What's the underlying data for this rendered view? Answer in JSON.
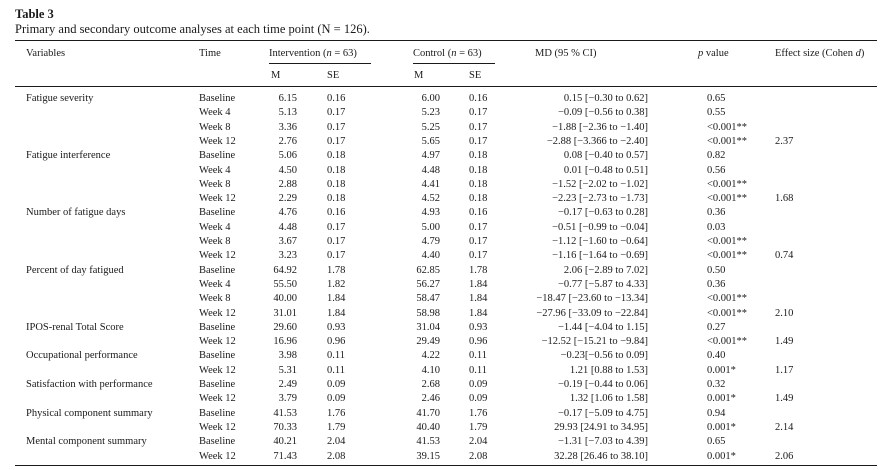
{
  "title": "Table 3",
  "caption": "Primary and secondary outcome analyses at each time point (N = 126).",
  "headers": {
    "variables": "Variables",
    "time": "Time",
    "intervention_label": "Intervention (",
    "intervention_n": "n",
    "intervention_rest": " = 63)",
    "control_label": "Control (",
    "control_n": "n",
    "control_rest": " = 63)",
    "md": "MD (95 % CI)",
    "p_italic": "p",
    "p_rest": " value",
    "effect_label": "Effect size (Cohen ",
    "effect_d": "d",
    "effect_close": ")",
    "m": "M",
    "se": "SE",
    "m2": "M",
    "se2": "SE"
  },
  "rows": [
    {
      "variable": "Fatigue severity",
      "time": "Baseline",
      "im": "6.15",
      "ise": "0.16",
      "cm": "6.00",
      "cse": "0.16",
      "md": "0.15 [−0.30 to 0.62]",
      "p": "0.65",
      "es": ""
    },
    {
      "variable": "",
      "time": "Week 4",
      "im": "5.13",
      "ise": "0.17",
      "cm": "5.23",
      "cse": "0.17",
      "md": "−0.09 [−0.56 to 0.38]",
      "p": "0.55",
      "es": ""
    },
    {
      "variable": "",
      "time": "Week 8",
      "im": "3.36",
      "ise": "0.17",
      "cm": "5.25",
      "cse": "0.17",
      "md": "−1.88 [−2.36 to −1.40]",
      "p": "<0.001**",
      "es": ""
    },
    {
      "variable": "",
      "time": "Week 12",
      "im": "2.76",
      "ise": "0.17",
      "cm": "5.65",
      "cse": "0.17",
      "md": "−2.88 [−3.366 to −2.40]",
      "p": "<0.001**",
      "es": "2.37"
    },
    {
      "variable": "Fatigue interference",
      "time": "Baseline",
      "im": "5.06",
      "ise": "0.18",
      "cm": "4.97",
      "cse": "0.18",
      "md": "0.08 [−0.40 to 0.57]",
      "p": "0.82",
      "es": ""
    },
    {
      "variable": "",
      "time": "Week 4",
      "im": "4.50",
      "ise": "0.18",
      "cm": "4.48",
      "cse": "0.18",
      "md": "0.01 [−0.48 to 0.51]",
      "p": "0.56",
      "es": ""
    },
    {
      "variable": "",
      "time": "Week 8",
      "im": "2.88",
      "ise": "0.18",
      "cm": "4.41",
      "cse": "0.18",
      "md": "−1.52 [−2.02 to −1.02]",
      "p": "<0.001**",
      "es": ""
    },
    {
      "variable": "",
      "time": "Week 12",
      "im": "2.29",
      "ise": "0.18",
      "cm": "4.52",
      "cse": "0.18",
      "md": "−2.23 [−2.73 to −1.73]",
      "p": "<0.001**",
      "es": "1.68"
    },
    {
      "variable": "Number of fatigue days",
      "time": "Baseline",
      "im": "4.76",
      "ise": "0.16",
      "cm": "4.93",
      "cse": "0.16",
      "md": "−0.17 [−0.63 to 0.28]",
      "p": "0.36",
      "es": ""
    },
    {
      "variable": "",
      "time": "Week 4",
      "im": "4.48",
      "ise": "0.17",
      "cm": "5.00",
      "cse": "0.17",
      "md": "−0.51 [−0.99 to −0.04]",
      "p": "0.03",
      "es": ""
    },
    {
      "variable": "",
      "time": "Week 8",
      "im": "3.67",
      "ise": "0.17",
      "cm": "4.79",
      "cse": "0.17",
      "md": "−1.12 [−1.60 to −0.64]",
      "p": "<0.001**",
      "es": ""
    },
    {
      "variable": "",
      "time": "Week 12",
      "im": "3.23",
      "ise": "0.17",
      "cm": "4.40",
      "cse": "0.17",
      "md": "−1.16 [−1.64 to −0.69]",
      "p": "<0.001**",
      "es": "0.74"
    },
    {
      "variable": "Percent of day fatigued",
      "time": "Baseline",
      "im": "64.92",
      "ise": "1.78",
      "cm": "62.85",
      "cse": "1.78",
      "md": "2.06 [−2.89 to 7.02]",
      "p": "0.50",
      "es": ""
    },
    {
      "variable": "",
      "time": "Week 4",
      "im": "55.50",
      "ise": "1.82",
      "cm": "56.27",
      "cse": "1.84",
      "md": "−0.77 [−5.87 to 4.33]",
      "p": "0.36",
      "es": ""
    },
    {
      "variable": "",
      "time": "Week 8",
      "im": "40.00",
      "ise": "1.84",
      "cm": "58.47",
      "cse": "1.84",
      "md": "−18.47 [−23.60 to −13.34]",
      "p": "<0.001**",
      "es": ""
    },
    {
      "variable": "",
      "time": "Week 12",
      "im": "31.01",
      "ise": "1.84",
      "cm": "58.98",
      "cse": "1.84",
      "md": "−27.96 [−33.09 to −22.84]",
      "p": "<0.001**",
      "es": "2.10"
    },
    {
      "variable": "IPOS-renal Total Score",
      "time": "Baseline",
      "im": "29.60",
      "ise": "0.93",
      "cm": "31.04",
      "cse": "0.93",
      "md": "−1.44 [−4.04 to 1.15]",
      "p": "0.27",
      "es": ""
    },
    {
      "variable": "",
      "time": "Week 12",
      "im": "16.96",
      "ise": "0.96",
      "cm": "29.49",
      "cse": "0.96",
      "md": "−12.52 [−15.21 to −9.84]",
      "p": "<0.001**",
      "es": "1.49"
    },
    {
      "variable": "Occupational performance",
      "time": "Baseline",
      "im": "3.98",
      "ise": "0.11",
      "cm": "4.22",
      "cse": "0.11",
      "md": "−0.23[−0.56 to 0.09]",
      "p": "0.40",
      "es": ""
    },
    {
      "variable": "",
      "time": "Week 12",
      "im": "5.31",
      "ise": "0.11",
      "cm": "4.10",
      "cse": "0.11",
      "md": "1.21 [0.88 to 1.53]",
      "p": "0.001*",
      "es": "1.17"
    },
    {
      "variable": "Satisfaction with performance",
      "time": "Baseline",
      "im": "2.49",
      "ise": "0.09",
      "cm": "2.68",
      "cse": "0.09",
      "md": "−0.19 [−0.44 to 0.06]",
      "p": "0.32",
      "es": ""
    },
    {
      "variable": "",
      "time": "Week 12",
      "im": "3.79",
      "ise": "0.09",
      "cm": "2.46",
      "cse": "0.09",
      "md": "1.32 [1.06 to 1.58]",
      "p": "0.001*",
      "es": "1.49"
    },
    {
      "variable": "Physical component summary",
      "time": "Baseline",
      "im": "41.53",
      "ise": "1.76",
      "cm": "41.70",
      "cse": "1.76",
      "md": "−0.17 [−5.09 to 4.75]",
      "p": "0.94",
      "es": ""
    },
    {
      "variable": "",
      "time": "Week 12",
      "im": "70.33",
      "ise": "1.79",
      "cm": "40.40",
      "cse": "1.79",
      "md": "29.93 [24.91 to 34.95]",
      "p": "0.001*",
      "es": "2.14"
    },
    {
      "variable": "Mental component summary",
      "time": "Baseline",
      "im": "40.21",
      "ise": "2.04",
      "cm": "41.53",
      "cse": "2.04",
      "md": "−1.31 [−7.03 to 4.39]",
      "p": "0.65",
      "es": ""
    },
    {
      "variable": "",
      "time": "Week 12",
      "im": "71.43",
      "ise": "2.08",
      "cm": "39.15",
      "cse": "2.08",
      "md": "32.28 [26.46 to 38.10]",
      "p": "0.001*",
      "es": "2.06"
    }
  ]
}
